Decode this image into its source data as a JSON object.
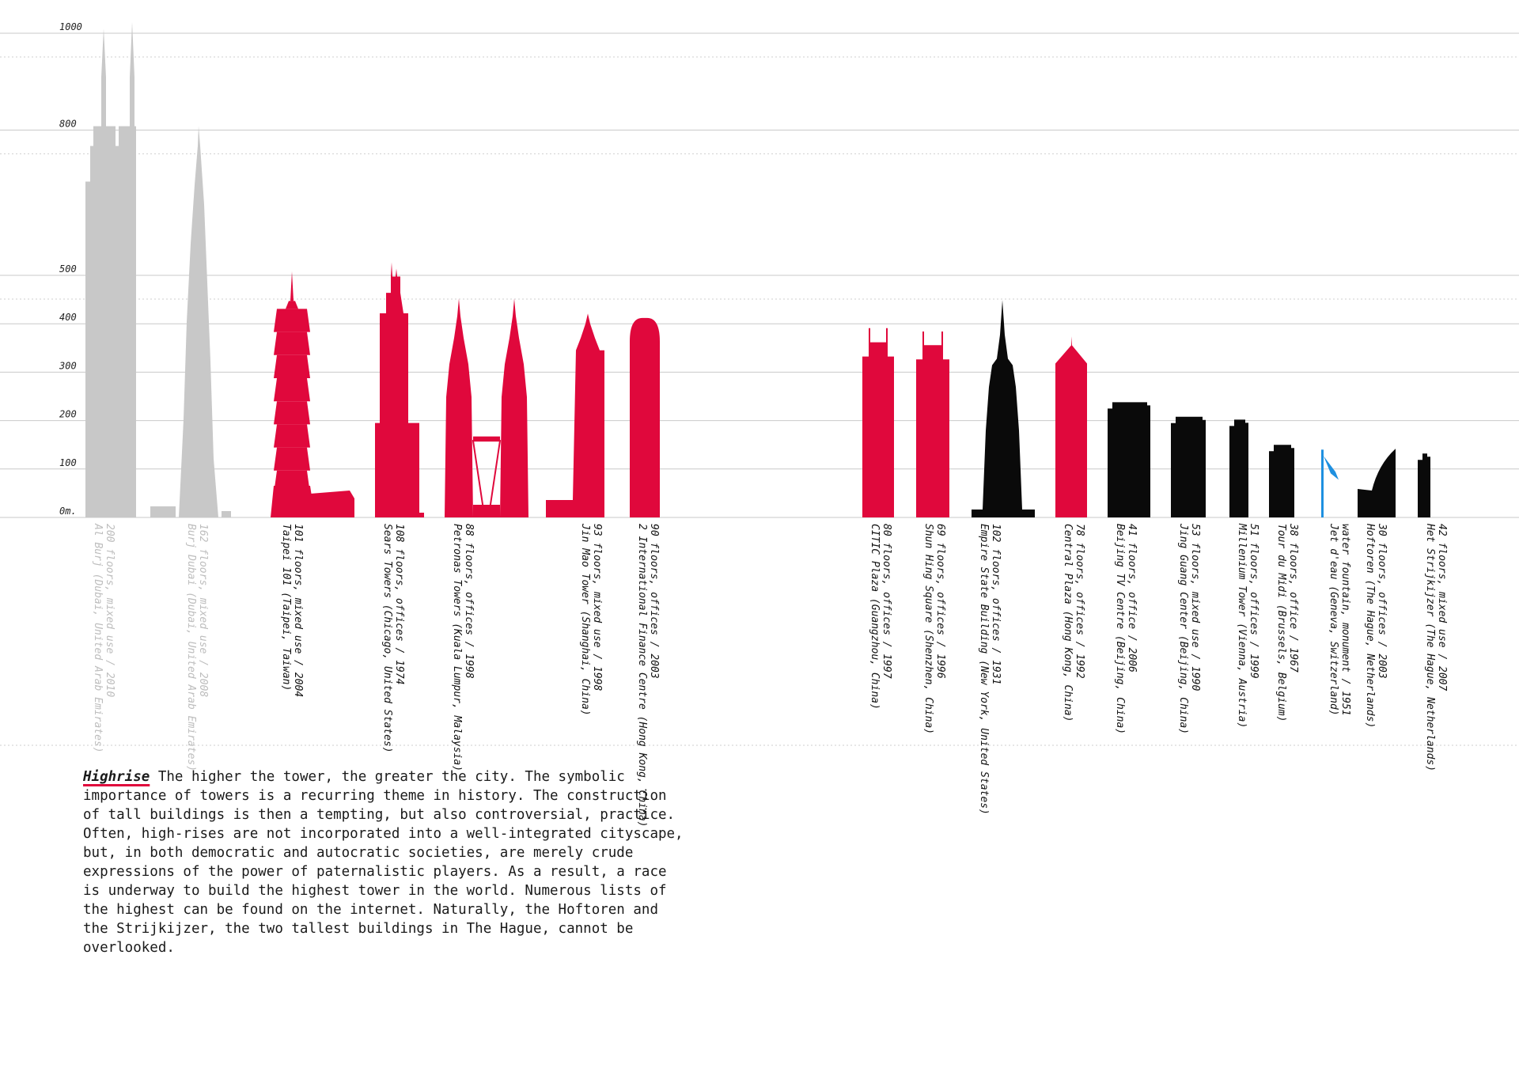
{
  "chart_data": {
    "type": "bar",
    "y_unit_label": "0m.",
    "yticks": [
      {
        "value": 0,
        "label": "0m."
      },
      {
        "value": 100,
        "label": "100"
      },
      {
        "value": 200,
        "label": "200"
      },
      {
        "value": 300,
        "label": "300"
      },
      {
        "value": 400,
        "label": "400"
      },
      {
        "value": 500,
        "label": "500"
      },
      {
        "value": 800,
        "label": "800"
      },
      {
        "value": 1000,
        "label": "1000"
      }
    ],
    "grid": true,
    "colors": {
      "proposed": "#c8c8c8",
      "tallest": "#e0083c",
      "hague": "#0a0a0a",
      "monument": "#1e90e0"
    },
    "buildings": [
      {
        "name": "Al Burj (Dubai, United Arab Emirates)",
        "detail": "200 floors, mixed use / 2010",
        "height": 1010,
        "group": "proposed",
        "shape": "twin-spire"
      },
      {
        "name": "Burj Dubai (Dubai, United Arab Emirates)",
        "detail": "162 floors, mixed use / 2008",
        "height": 808,
        "group": "proposed",
        "shape": "needle"
      },
      {
        "name": "Taipei 101 (Taipei, Taiwan)",
        "detail": "101 floors, mixed use / 2004",
        "height": 508,
        "group": "tallest",
        "shape": "pagoda"
      },
      {
        "name": "Sears Towers (Chicago, United States)",
        "detail": "108 floors, offices / 1974",
        "height": 527,
        "group": "tallest",
        "shape": "stepped"
      },
      {
        "name": "Petronas Towers (Kuala Lumpur, Malaysia)",
        "detail": "88 floors, offices / 1998",
        "height": 452,
        "group": "tallest",
        "shape": "twin"
      },
      {
        "name": "Jin Mao Tower (Shanghai, China)",
        "detail": "93 floors, mixed use / 1998",
        "height": 421,
        "group": "tallest",
        "shape": "tapered"
      },
      {
        "name": "2 International Finance Centre (Hong Kong, China)",
        "detail": "90 floors, offices / 2003",
        "height": 412,
        "group": "tallest",
        "shape": "rounded"
      },
      {
        "name": "CITIC Plaza (Guangzhou, China)",
        "detail": "80 floors, offices / 1997",
        "height": 391,
        "group": "tallest",
        "shape": "horns"
      },
      {
        "name": "Shun Hing Square (Shenzhen, China)",
        "detail": "69 floors, offices / 1996",
        "height": 384,
        "group": "tallest",
        "shape": "horns"
      },
      {
        "name": "Empire State Building (New York, United States)",
        "detail": "102 floors, offices / 1931",
        "height": 449,
        "group": "hague",
        "shape": "spire"
      },
      {
        "name": "Central Plaza (Hong Kong, China)",
        "detail": "78 floors, offices / 1992",
        "height": 374,
        "group": "tallest",
        "shape": "gable"
      },
      {
        "name": "Beijing TV Centre (Beijing, China)",
        "detail": "41 floors, office / 2006",
        "height": 238,
        "group": "hague",
        "shape": "block"
      },
      {
        "name": "Jing Guang Center (Beijing, China)",
        "detail": "53 floors, mixed use / 1990",
        "height": 208,
        "group": "hague",
        "shape": "block"
      },
      {
        "name": "Millenium Tower (Vienna, Austria)",
        "detail": "51 floors, offices / 1999",
        "height": 202,
        "group": "hague",
        "shape": "block"
      },
      {
        "name": "Tour du Midi (Brussels, Belgium)",
        "detail": "38 floors, office / 1967",
        "height": 150,
        "group": "hague",
        "shape": "block"
      },
      {
        "name": "Jet d'eau (Geneva, Switzerland)",
        "detail": "water fountain, monument / 1951",
        "height": 140,
        "group": "monument",
        "shape": "fountain"
      },
      {
        "name": "Hoftoren (The Hague, Netherlands)",
        "detail": "30 floors, offices / 2003",
        "height": 142,
        "group": "hague",
        "shape": "curve"
      },
      {
        "name": "Het Strijkijzer (The Hague, Netherlands)",
        "detail": "42 floors, mixed use / 2007",
        "height": 132,
        "group": "hague",
        "shape": "block"
      }
    ]
  },
  "article": {
    "lead": "Highrise",
    "body": " The higher the tower, the greater the city. The symbolic importance of towers is a recurring theme in history. The construction of tall buildings is then a tempting, but also controversial, practice. Often, high-rises are not incorporated into a well-integrated cityscape, but, in both democratic and autocratic societies, are merely crude expressions of the power of paternalistic players. As a result, a race is underway to build the highest tower in the world. Numerous lists of the highest can be found on the internet. Naturally, the Hoftoren and the Strijkijzer, the two tallest buildings in The Hague, cannot be overlooked."
  }
}
